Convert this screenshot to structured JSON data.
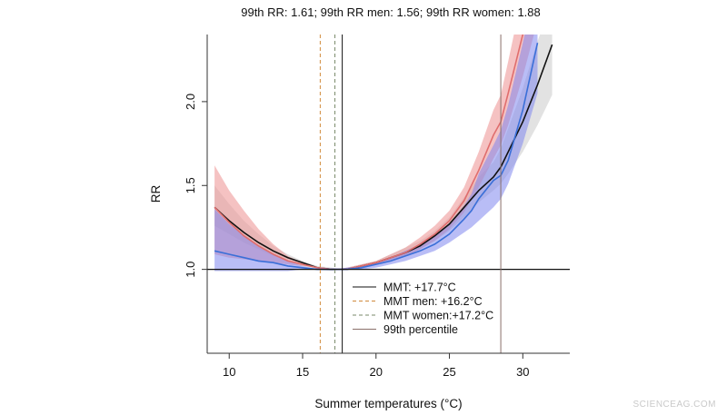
{
  "title": "99th RR: 1.61; 99th RR men: 1.56; 99th RR women: 1.88",
  "watermark": "SCIENCEAG.COM",
  "colors": {
    "all": "#111111",
    "all_band": "#d8d8d8",
    "men": "#3a6fd8",
    "men_band": "#7f86ee",
    "women": "#e06d6d",
    "women_band": "#ee9a9a",
    "mmt_men": "#d08a3c",
    "mmt_women": "#7a8a6a",
    "p99": "#8a6f6a"
  },
  "chart_data": {
    "type": "line",
    "title": "99th RR: 1.61; 99th RR men: 1.56; 99th RR women: 1.88",
    "xlabel": "Summer temperatures (°C)",
    "ylabel": "RR",
    "xlim": [
      8.5,
      33.2
    ],
    "ylim": [
      0.5,
      2.4
    ],
    "xticks": [
      10,
      15,
      20,
      25,
      30
    ],
    "yticks": [
      1.0,
      1.5,
      2.0
    ],
    "ytick_labels": [
      "1.0",
      "1.5",
      "2.0"
    ],
    "reference_y": 1.0,
    "grid": false,
    "legend_position": "bottom-center",
    "series": [
      {
        "key": "all",
        "kind": "line",
        "x": [
          9,
          10,
          11,
          12,
          13,
          14,
          15,
          16,
          17,
          17.7,
          18,
          19,
          20,
          21,
          22,
          23,
          24,
          25,
          26,
          27,
          28,
          28.5,
          29,
          30,
          31,
          32
        ],
        "y": [
          1.37,
          1.29,
          1.22,
          1.16,
          1.11,
          1.07,
          1.04,
          1.01,
          1.0,
          1.0,
          1.0,
          1.02,
          1.04,
          1.07,
          1.1,
          1.14,
          1.2,
          1.27,
          1.37,
          1.47,
          1.55,
          1.61,
          1.7,
          1.88,
          2.1,
          2.34
        ],
        "lo": [
          1.26,
          1.21,
          1.16,
          1.12,
          1.08,
          1.05,
          1.02,
          1.0,
          0.99,
          1.0,
          1.0,
          1.01,
          1.03,
          1.05,
          1.08,
          1.12,
          1.17,
          1.23,
          1.31,
          1.4,
          1.47,
          1.51,
          1.57,
          1.7,
          1.86,
          2.04
        ],
        "hi": [
          1.5,
          1.39,
          1.29,
          1.21,
          1.14,
          1.09,
          1.05,
          1.02,
          1.01,
          1.0,
          1.01,
          1.03,
          1.05,
          1.09,
          1.13,
          1.17,
          1.23,
          1.31,
          1.43,
          1.55,
          1.64,
          1.72,
          1.84,
          2.08,
          2.36,
          2.6
        ]
      },
      {
        "key": "women",
        "kind": "line",
        "x": [
          9,
          10,
          11,
          12,
          13,
          14,
          15,
          16,
          17,
          17.2,
          18,
          19,
          20,
          21,
          22,
          23,
          24,
          25,
          26,
          27,
          28,
          28.5,
          29,
          30,
          31
        ],
        "y": [
          1.37,
          1.28,
          1.2,
          1.14,
          1.09,
          1.05,
          1.03,
          1.01,
          1.0,
          1.0,
          1.0,
          1.02,
          1.04,
          1.07,
          1.1,
          1.15,
          1.21,
          1.29,
          1.41,
          1.59,
          1.8,
          1.88,
          2.05,
          2.4,
          2.8
        ],
        "lo": [
          1.09,
          1.07,
          1.06,
          1.05,
          1.04,
          1.03,
          1.02,
          1.01,
          1.0,
          1.0,
          1.0,
          1.01,
          1.03,
          1.05,
          1.08,
          1.12,
          1.17,
          1.24,
          1.34,
          1.49,
          1.66,
          1.74,
          1.86,
          2.15,
          2.48
        ],
        "hi": [
          1.62,
          1.47,
          1.35,
          1.24,
          1.15,
          1.08,
          1.04,
          1.01,
          1.0,
          1.0,
          1.01,
          1.03,
          1.05,
          1.09,
          1.13,
          1.19,
          1.26,
          1.35,
          1.49,
          1.7,
          1.95,
          2.04,
          2.24,
          2.65,
          3.1
        ]
      },
      {
        "key": "men",
        "kind": "line",
        "x": [
          9,
          10,
          11,
          12,
          13,
          14,
          15,
          16,
          16.2,
          17,
          18,
          19,
          20,
          21,
          22,
          23,
          24,
          25,
          26,
          26.5,
          27,
          28,
          28.5,
          29,
          30,
          31
        ],
        "y": [
          1.11,
          1.09,
          1.07,
          1.05,
          1.04,
          1.02,
          1.01,
          1.0,
          1.0,
          1.0,
          1.0,
          1.01,
          1.03,
          1.05,
          1.08,
          1.11,
          1.15,
          1.21,
          1.3,
          1.35,
          1.42,
          1.53,
          1.56,
          1.65,
          1.95,
          2.35
        ],
        "lo": [
          0.99,
          0.99,
          0.99,
          0.99,
          0.99,
          0.99,
          1.0,
          1.0,
          1.0,
          1.0,
          1.0,
          1.0,
          1.01,
          1.03,
          1.05,
          1.08,
          1.11,
          1.16,
          1.22,
          1.25,
          1.29,
          1.37,
          1.42,
          1.51,
          1.75,
          2.05
        ],
        "hi": [
          1.36,
          1.27,
          1.2,
          1.14,
          1.09,
          1.05,
          1.02,
          1.0,
          1.0,
          1.0,
          1.01,
          1.02,
          1.04,
          1.07,
          1.11,
          1.15,
          1.2,
          1.27,
          1.38,
          1.45,
          1.57,
          1.74,
          1.83,
          1.98,
          2.35,
          2.75
        ]
      }
    ],
    "vlines": [
      {
        "key": "mmt_all",
        "x": 17.7,
        "style": "solid"
      },
      {
        "key": "mmt_men",
        "x": 16.2,
        "style": "dashed"
      },
      {
        "key": "mmt_women",
        "x": 17.2,
        "style": "dashed"
      },
      {
        "key": "p99",
        "x": 28.5,
        "style": "solid"
      }
    ],
    "legend": [
      {
        "key": "mmt_all",
        "label": "MMT: +17.7°C",
        "style": "solid"
      },
      {
        "key": "mmt_men",
        "label": "MMT men: +16.2°C",
        "style": "dashed"
      },
      {
        "key": "mmt_women",
        "label": "MMT women:+17.2°C",
        "style": "dashed"
      },
      {
        "key": "p99",
        "label": "99th percentile",
        "style": "solid"
      }
    ]
  }
}
